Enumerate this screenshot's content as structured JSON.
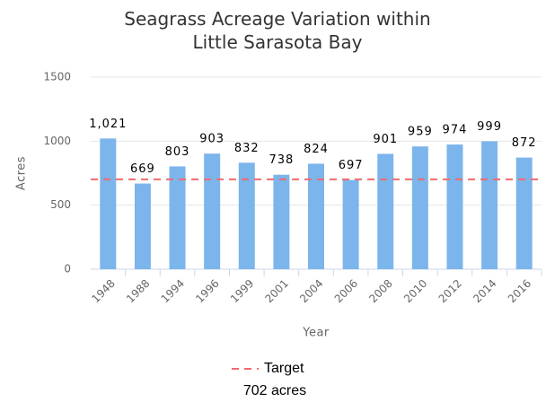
{
  "chart_data": {
    "type": "bar",
    "title": "Seagrass Acreage Variation within Little Sarasota Bay",
    "x_label": "Year",
    "y_label": "Acres",
    "categories": [
      "1948",
      "1988",
      "1994",
      "1996",
      "1999",
      "2001",
      "2004",
      "2006",
      "2008",
      "2010",
      "2012",
      "2014",
      "2016"
    ],
    "values": [
      1021,
      669,
      803,
      903,
      832,
      738,
      824,
      697,
      901,
      959,
      974,
      999,
      872
    ],
    "value_labels": [
      "1,021",
      "669",
      "803",
      "903",
      "832",
      "738",
      "824",
      "697",
      "901",
      "959",
      "974",
      "999",
      "872"
    ],
    "color": "#7cb5ec",
    "ylim": [
      0,
      1500
    ],
    "yticks": [
      0,
      500,
      1000,
      1500
    ],
    "grid": true,
    "target": {
      "name": "Target",
      "label": "702 acres",
      "value": 702,
      "color": "#f06b6b"
    }
  }
}
